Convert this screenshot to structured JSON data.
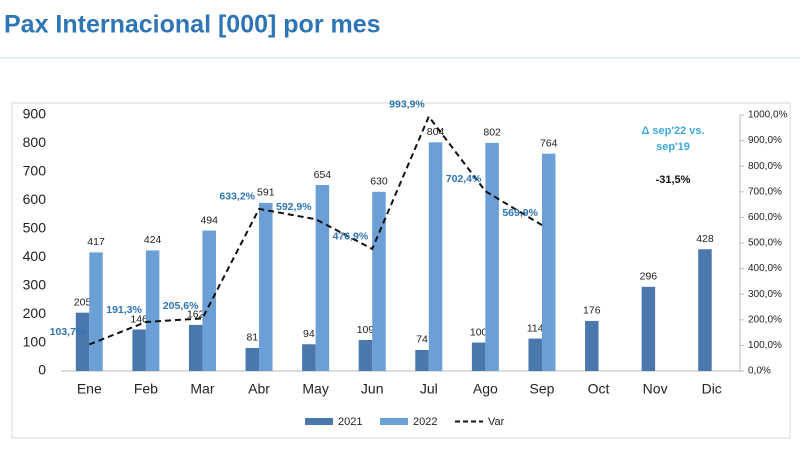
{
  "chart_data": {
    "type": "bar",
    "title": "Pax Internacional [000] por mes",
    "categories": [
      "Ene",
      "Feb",
      "Mar",
      "Abr",
      "May",
      "Jun",
      "Jul",
      "Ago",
      "Sep",
      "Oct",
      "Nov",
      "Dic"
    ],
    "series": [
      {
        "name": "2021",
        "type": "bar",
        "color": "#4a78ad",
        "values": [
          205,
          146,
          162,
          81,
          94,
          109,
          74,
          100,
          114,
          176,
          296,
          428
        ]
      },
      {
        "name": "2022",
        "type": "bar",
        "color": "#6b9fd6",
        "values": [
          417,
          424,
          494,
          591,
          654,
          630,
          804,
          802,
          764,
          null,
          null,
          null
        ]
      },
      {
        "name": "Var",
        "type": "line",
        "axis": "y2",
        "color": "#111111",
        "dashed": true,
        "values": [
          103.7,
          191.3,
          205.6,
          633.2,
          592.9,
          476.9,
          993.9,
          702.4,
          569.9,
          null,
          null,
          null
        ],
        "value_labels": [
          "103,7%",
          "191,3%",
          "205,6%",
          "633,2%",
          "592,9%",
          "476,9%",
          "993,9%",
          "702,4%",
          "569,9%",
          null,
          null,
          null
        ]
      }
    ],
    "ylim": [
      0,
      900
    ],
    "yticks": [
      0,
      100,
      200,
      300,
      400,
      500,
      600,
      700,
      800,
      900
    ],
    "y2lim": [
      0,
      1000
    ],
    "y2ticks": [
      {
        "value": 0,
        "label": "0,0%"
      },
      {
        "value": 100,
        "label": "100,0%"
      },
      {
        "value": 200,
        "label": "200,0%"
      },
      {
        "value": 300,
        "label": "300,0%"
      },
      {
        "value": 400,
        "label": "400,0%"
      },
      {
        "value": 500,
        "label": "500,0%"
      },
      {
        "value": 600,
        "label": "600,0%"
      },
      {
        "value": 700,
        "label": "700,0%"
      },
      {
        "value": 800,
        "label": "800,0%"
      },
      {
        "value": 900,
        "label": "900,0%"
      },
      {
        "value": 1000,
        "label": "1000,0%"
      }
    ],
    "annotations": [
      "Δ sep'22 vs.",
      "sep'19",
      "-31,5%"
    ],
    "legend": "bottom"
  }
}
